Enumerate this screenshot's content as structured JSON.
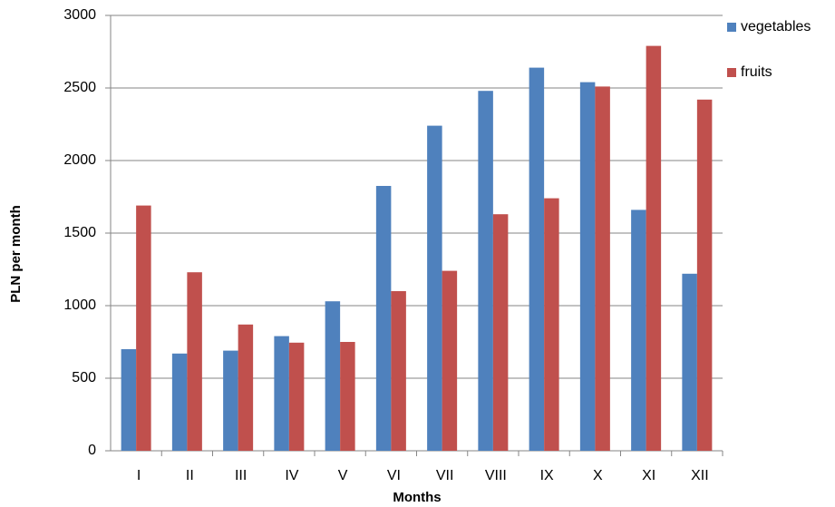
{
  "chart_data": {
    "type": "bar",
    "x_label": "Months",
    "y_label": "PLN per month",
    "categories": [
      "I",
      "II",
      "III",
      "IV",
      "V",
      "VI",
      "VII",
      "VIII",
      "IX",
      "X",
      "XI",
      "XII"
    ],
    "series": [
      {
        "name": "vegetables",
        "color": "#4f81bd",
        "values": [
          700,
          670,
          690,
          790,
          1030,
          1825,
          2240,
          2480,
          2640,
          2540,
          1660,
          1220
        ]
      },
      {
        "name": "fruits",
        "color": "#c0504d",
        "values": [
          1690,
          1230,
          870,
          745,
          750,
          1100,
          1240,
          1630,
          1740,
          2510,
          2790,
          2420
        ]
      }
    ],
    "ylim": [
      0,
      3000
    ],
    "yticks": [
      0,
      500,
      1000,
      1500,
      2000,
      2500,
      3000
    ],
    "grid": true,
    "legend": "right"
  }
}
